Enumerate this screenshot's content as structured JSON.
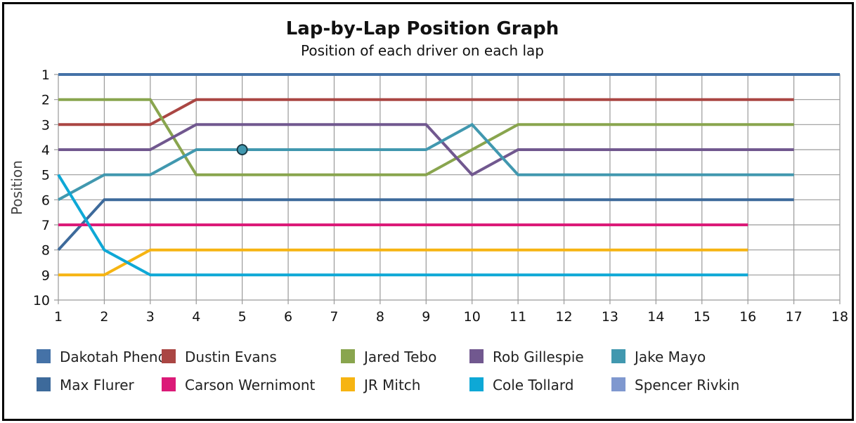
{
  "chart_data": {
    "type": "line",
    "title": "Lap-by-Lap Position Graph",
    "subtitle": "Position of each driver on each lap",
    "xlabel": "",
    "ylabel": "Position",
    "xlim": [
      1,
      18
    ],
    "ylim": [
      1,
      10
    ],
    "y_inverted": true,
    "x_ticks": [
      "1",
      "2",
      "3",
      "4",
      "5",
      "6",
      "7",
      "8",
      "9",
      "10",
      "11",
      "12",
      "13",
      "14",
      "15",
      "16",
      "17",
      "18"
    ],
    "y_ticks": [
      "1",
      "2",
      "3",
      "4",
      "5",
      "6",
      "7",
      "8",
      "9",
      "10"
    ],
    "grid": true,
    "legend_position": "bottom",
    "highlight_point": {
      "series": "Jake Mayo",
      "x": 5,
      "y": 4
    },
    "series": [
      {
        "name": "Dakotah Phend",
        "color": "#4572a7",
        "x": [
          1,
          2,
          3,
          4,
          5,
          6,
          7,
          8,
          9,
          10,
          11,
          12,
          13,
          14,
          15,
          16,
          17,
          18
        ],
        "values": [
          1,
          1,
          1,
          1,
          1,
          1,
          1,
          1,
          1,
          1,
          1,
          1,
          1,
          1,
          1,
          1,
          1,
          1
        ]
      },
      {
        "name": "Dustin Evans",
        "color": "#aa4643",
        "x": [
          1,
          2,
          3,
          4,
          5,
          6,
          7,
          8,
          9,
          10,
          11,
          12,
          13,
          14,
          15,
          16,
          17
        ],
        "values": [
          3,
          3,
          3,
          2,
          2,
          2,
          2,
          2,
          2,
          2,
          2,
          2,
          2,
          2,
          2,
          2,
          2
        ]
      },
      {
        "name": "Jared Tebo",
        "color": "#89a54e",
        "x": [
          1,
          2,
          3,
          4,
          5,
          6,
          7,
          8,
          9,
          10,
          11,
          12,
          13,
          14,
          15,
          16,
          17
        ],
        "values": [
          2,
          2,
          2,
          5,
          5,
          5,
          5,
          5,
          5,
          4,
          3,
          3,
          3,
          3,
          3,
          3,
          3
        ]
      },
      {
        "name": "Rob Gillespie",
        "color": "#71588f",
        "x": [
          1,
          2,
          3,
          4,
          5,
          6,
          7,
          8,
          9,
          10,
          11,
          12,
          13,
          14,
          15,
          16,
          17
        ],
        "values": [
          4,
          4,
          4,
          3,
          3,
          3,
          3,
          3,
          3,
          5,
          4,
          4,
          4,
          4,
          4,
          4,
          4
        ]
      },
      {
        "name": "Jake Mayo",
        "color": "#4198af",
        "x": [
          1,
          2,
          3,
          4,
          5,
          6,
          7,
          8,
          9,
          10,
          11,
          12,
          13,
          14,
          15,
          16,
          17
        ],
        "values": [
          6,
          5,
          5,
          4,
          4,
          4,
          4,
          4,
          4,
          3,
          5,
          5,
          5,
          5,
          5,
          5,
          5
        ]
      },
      {
        "name": "Max Flurer",
        "color": "#3d6a9b",
        "x": [
          1,
          2,
          3,
          4,
          5,
          6,
          7,
          8,
          9,
          10,
          11,
          12,
          13,
          14,
          15,
          16,
          17
        ],
        "values": [
          8,
          6,
          6,
          6,
          6,
          6,
          6,
          6,
          6,
          6,
          6,
          6,
          6,
          6,
          6,
          6,
          6
        ]
      },
      {
        "name": "Carson Wernimont",
        "color": "#db1a78",
        "x": [
          1,
          2,
          3,
          4,
          5,
          6,
          7,
          8,
          9,
          10,
          11,
          12,
          13,
          14,
          15,
          16
        ],
        "values": [
          7,
          7,
          7,
          7,
          7,
          7,
          7,
          7,
          7,
          7,
          7,
          7,
          7,
          7,
          7,
          7
        ]
      },
      {
        "name": "JR Mitch",
        "color": "#f6b412",
        "x": [
          1,
          2,
          3,
          4,
          5,
          6,
          7,
          8,
          9,
          10,
          11,
          12,
          13,
          14,
          15,
          16
        ],
        "values": [
          9,
          9,
          8,
          8,
          8,
          8,
          8,
          8,
          8,
          8,
          8,
          8,
          8,
          8,
          8,
          8
        ]
      },
      {
        "name": "Cole Tollard",
        "color": "#0ea8d6",
        "x": [
          1,
          2,
          3,
          4,
          5,
          6,
          7,
          8,
          9,
          10,
          11,
          12,
          13,
          14,
          15,
          16
        ],
        "values": [
          5,
          8,
          9,
          9,
          9,
          9,
          9,
          9,
          9,
          9,
          9,
          9,
          9,
          9,
          9,
          9
        ]
      },
      {
        "name": "Spencer Rivkin",
        "color": "#7f98cf",
        "x": [],
        "values": []
      }
    ]
  }
}
